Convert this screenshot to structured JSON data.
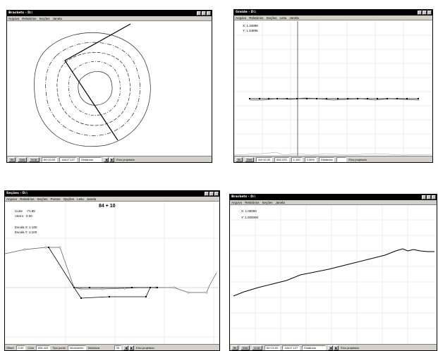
{
  "windows": {
    "brackets1": {
      "title": "Brackets - D:\\",
      "menu": [
        "Arquivo",
        "Relatórios",
        "Seções",
        "Janela"
      ],
      "status": {
        "btn1": "Bt",
        "btn2": "Grid",
        "btn3": "In Ar",
        "station": "84+10.00",
        "value": "18417.127",
        "label": "Distância",
        "mode": "Eixo projetado"
      }
    },
    "greide": {
      "title": "Greide - D:\\",
      "menu": [
        "Arquivo",
        "Relatórios",
        "Seções",
        "Leitu",
        "Janela"
      ],
      "readout": {
        "x": "X: 1.34896",
        "y": "Y: 1.34896"
      },
      "status": {
        "btn1": "Bt",
        "btn2": "Grid",
        "station": "84+10.00",
        "elev": "852.375",
        "v1": "1.100",
        "v2": "0.00%",
        "label": "Distância",
        "mode": "Eixo projetado"
      }
    },
    "secoes": {
      "title": "Seções - D:\\",
      "menu": [
        "Arquivo",
        "Relatórios",
        "Seções",
        "Pontos",
        "Opções",
        "Leitu",
        "Janela"
      ],
      "station": "84 + 10",
      "info": {
        "corte_label": "Corte",
        "corte_value": "-71.88",
        "aterro_label": "Aterro",
        "aterro_value": "0.00",
        "escala_x": "Escala X: 1:100",
        "escala_y": "Escala Y: 1:100"
      },
      "status": {
        "offset_label": "Offset",
        "offset_value": "0.00",
        "cota_label": "Cota",
        "cota_value": "835.424",
        "tipo_label": "Tipo ponto",
        "tipo_value": "Movimento",
        "dist_label": "Distância",
        "dist_value": "35",
        "mode": "Eixo projetado"
      }
    },
    "brackets2": {
      "title": "Brackets - D:\\",
      "menu": [
        "Arquivo",
        "Relatórios",
        "Seções",
        "Janela"
      ],
      "readout": {
        "x": "X: 1.00000",
        "y": "Y: 1.000000"
      },
      "status": {
        "btn1": "Bt",
        "btn2": "Grid",
        "btn3": "In Ar",
        "station": "84+10.00",
        "value": "18417.127",
        "label": "Distância",
        "mode": "Eixo projetado"
      }
    }
  },
  "icons": {
    "prev": "◀",
    "next": "▶"
  }
}
